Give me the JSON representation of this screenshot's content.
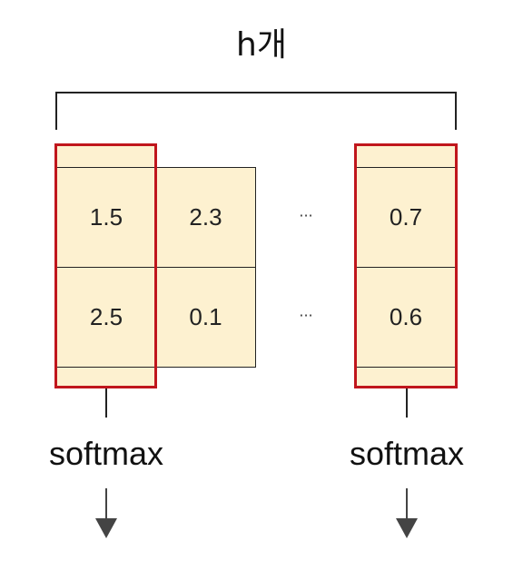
{
  "top_label": "h개",
  "ellipsis": "···",
  "columns": [
    {
      "values": [
        "1.5",
        "2.5"
      ],
      "highlighted": true
    },
    {
      "values": [
        "2.3",
        "0.1"
      ],
      "highlighted": false
    },
    {
      "values": [
        "0.7",
        "0.6"
      ],
      "highlighted": true
    }
  ],
  "softmax_labels": [
    "softmax",
    "softmax"
  ],
  "colors": {
    "cell_fill": "#fdf1d0",
    "highlight": "#c0161c",
    "line": "#222222",
    "arrow": "#444444"
  }
}
